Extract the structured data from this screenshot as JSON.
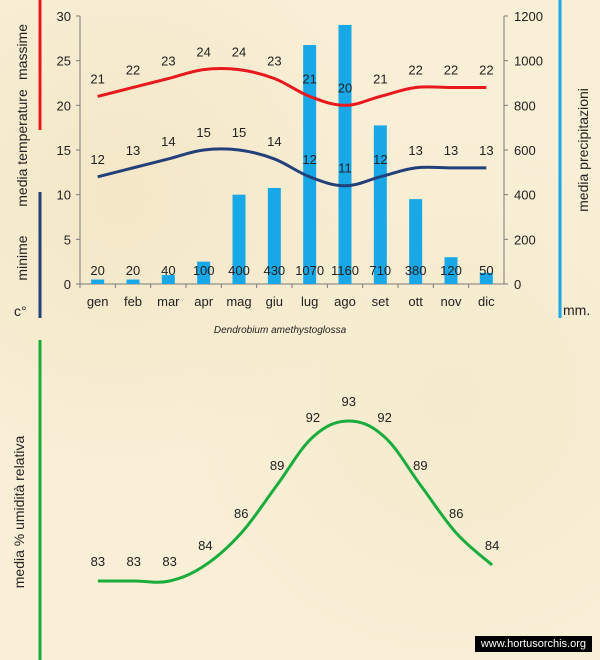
{
  "chart_data": [
    {
      "type": "line+bar",
      "categories": [
        "gen",
        "feb",
        "mar",
        "apr",
        "mag",
        "giu",
        "lug",
        "ago",
        "set",
        "ott",
        "nov",
        "dic"
      ],
      "series": [
        {
          "name": "massime",
          "kind": "line",
          "axis": "left",
          "color": "#e8191e",
          "values": [
            21,
            22,
            23,
            24,
            24,
            23,
            21,
            20,
            21,
            22,
            22,
            22
          ]
        },
        {
          "name": "minime",
          "kind": "line",
          "axis": "left",
          "color": "#24407a",
          "values": [
            12,
            13,
            14,
            15,
            15,
            14,
            12,
            11,
            12,
            13,
            13,
            13
          ]
        },
        {
          "name": "precipitazioni",
          "kind": "bar",
          "axis": "right",
          "color": "#18a8e8",
          "values": [
            20,
            20,
            40,
            100,
            400,
            430,
            1070,
            1160,
            710,
            380,
            120,
            50
          ]
        }
      ],
      "left_axis": {
        "min": 0,
        "max": 30,
        "ticks": [
          0,
          5,
          10,
          15,
          20,
          25,
          30
        ],
        "title_red": "massime",
        "title_main": "media  temperature",
        "title_blue": "minime",
        "unit": "c°"
      },
      "right_axis": {
        "min": 0,
        "max": 1200,
        "ticks": [
          0,
          200,
          400,
          600,
          800,
          1000,
          1200
        ],
        "title": "media  precipitazioni",
        "unit": "mm."
      },
      "caption": "Dendrobium amethystoglossa"
    },
    {
      "type": "line",
      "categories": [
        "gen",
        "feb",
        "mar",
        "apr",
        "mag",
        "giu",
        "lug",
        "ago",
        "set",
        "ott",
        "nov",
        "dic"
      ],
      "series": [
        {
          "name": "umidità",
          "color": "#1aac3c",
          "values": [
            83,
            83,
            83,
            84,
            86,
            89,
            92,
            93,
            92,
            89,
            86,
            84
          ]
        }
      ],
      "ylabel": "media % umidità relativa",
      "ylim": [
        82,
        94
      ]
    }
  ],
  "colors": {
    "red": "#e8191e",
    "navy": "#24407a",
    "blue": "#18a8e8",
    "green": "#1aac3c"
  },
  "footer": "www.hortusorchis.org"
}
